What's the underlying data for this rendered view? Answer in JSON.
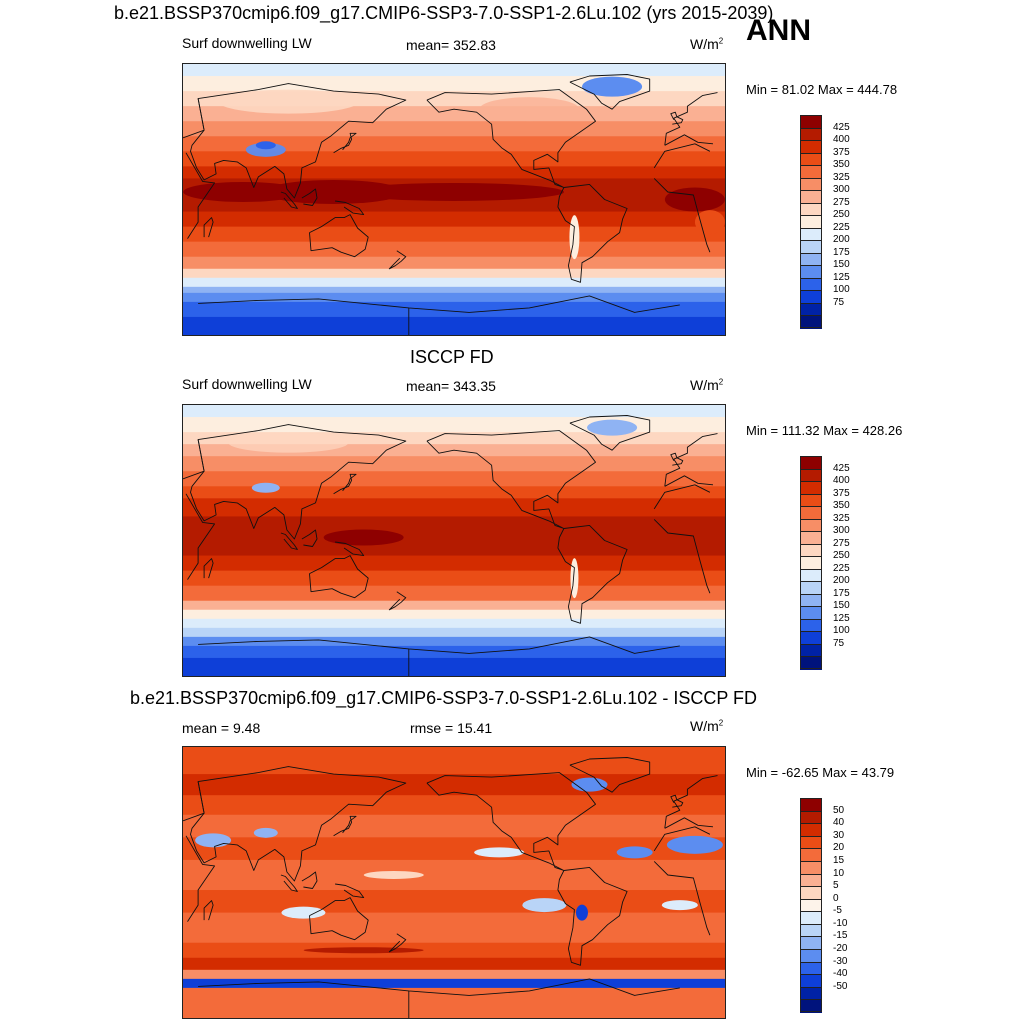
{
  "figure": {
    "season_label": "ANN",
    "units_base": "W/m",
    "units_exp": "2"
  },
  "panels": [
    {
      "heading": "b.e21.BSSP370cmip6.f09_g17.CMIP6-SSP3-7.0-SSP1-2.6Lu.102 (yrs 2015-2039)",
      "left_label": "Surf downwelling LW",
      "center_label": "mean= 352.83",
      "minmax": "Min =  81.02 Max = 444.78",
      "field": "model"
    },
    {
      "heading": "ISCCP FD",
      "left_label": "Surf downwelling LW",
      "center_label": "mean= 343.35",
      "minmax": "Min = 111.32 Max = 428.26",
      "field": "obs"
    },
    {
      "heading": "b.e21.BSSP370cmip6.f09_g17.CMIP6-SSP3-7.0-SSP1-2.6Lu.102 - ISCCP FD",
      "left_label": "mean =   9.48",
      "center_label": "rmse =  15.41",
      "minmax": "Min = -62.65 Max =  43.79",
      "field": "diff"
    }
  ],
  "colorbars": {
    "abs": {
      "levels": [
        "425",
        "400",
        "375",
        "350",
        "325",
        "300",
        "275",
        "250",
        "225",
        "200",
        "175",
        "150",
        "125",
        "100",
        "75"
      ],
      "colors": [
        "#8e0000",
        "#b41b00",
        "#d32c00",
        "#ea4d16",
        "#f36b3a",
        "#f78e66",
        "#fab093",
        "#fdd7c1",
        "#fdeedf",
        "#dcecfb",
        "#b9d4f7",
        "#8fb3f3",
        "#5c8df0",
        "#2c62ea",
        "#0e3fd8",
        "#0022a6",
        "#00137c"
      ]
    },
    "diff": {
      "levels": [
        "50",
        "40",
        "30",
        "20",
        "15",
        "10",
        "5",
        "0",
        "-5",
        "-10",
        "-15",
        "-20",
        "-30",
        "-40",
        "-50"
      ],
      "colors": [
        "#8e0000",
        "#b41b00",
        "#d32c00",
        "#ea4d16",
        "#f36b3a",
        "#f78e66",
        "#fab093",
        "#fdd7c1",
        "#fdf3ea",
        "#dcecfb",
        "#b9d4f7",
        "#8fb3f3",
        "#5c8df0",
        "#2c62ea",
        "#0e3fd8",
        "#0022a6",
        "#00137c"
      ]
    }
  }
}
